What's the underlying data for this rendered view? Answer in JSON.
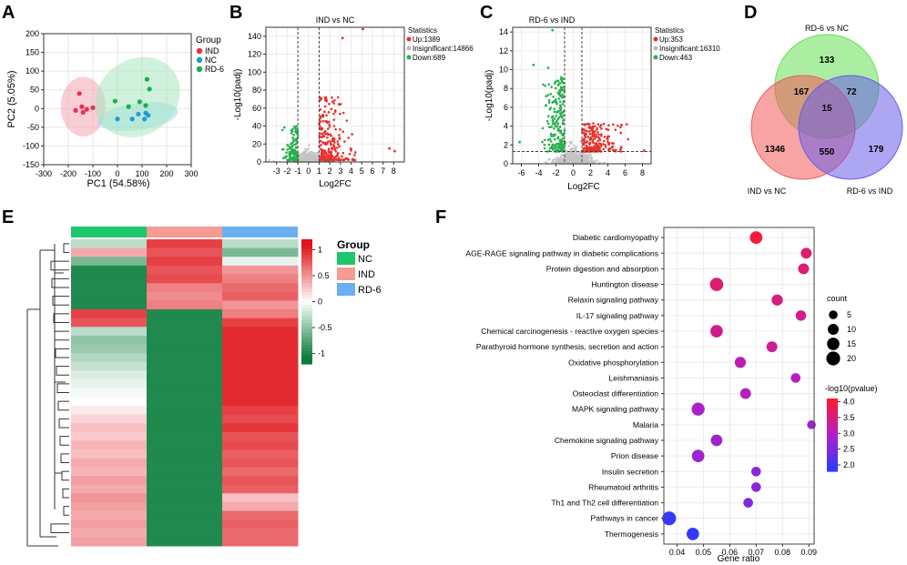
{
  "chart_data": [
    {
      "panel": "A",
      "type": "scatter",
      "xlabel": "PC1 (54.58%)",
      "ylabel": "PC2 (5.05%)",
      "xlim": [
        -300,
        300
      ],
      "ylim": [
        -150,
        200
      ],
      "xticks": [
        "-300",
        "-200",
        "-100",
        "0",
        "100",
        "200",
        "300"
      ],
      "yticks": [
        "200",
        "150",
        "100",
        "50",
        "0",
        "-50",
        "-100",
        "-150"
      ],
      "legend_title": "Group",
      "series": [
        {
          "name": "IND",
          "color": "#e8304d",
          "points": [
            [
              -155,
              40
            ],
            [
              -170,
              -5
            ],
            [
              -145,
              5
            ],
            [
              -125,
              -2
            ],
            [
              -100,
              2
            ],
            [
              -140,
              -10
            ]
          ]
        },
        {
          "name": "NC",
          "color": "#1e9bd6",
          "points": [
            [
              0,
              -28
            ],
            [
              60,
              -28
            ],
            [
              85,
              -15
            ],
            [
              110,
              -28
            ],
            [
              115,
              -12
            ],
            [
              125,
              -18
            ]
          ]
        },
        {
          "name": "RD-6",
          "color": "#1ab04a",
          "points": [
            [
              -10,
              20
            ],
            [
              45,
              5
            ],
            [
              120,
              78
            ],
            [
              130,
              52
            ],
            [
              90,
              18
            ],
            [
              115,
              8
            ]
          ]
        }
      ],
      "ellipses": [
        {
          "group": "IND",
          "color": "#f4a6b2"
        },
        {
          "group": "NC",
          "color": "#9fd9ee"
        },
        {
          "group": "RD-6",
          "color": "#a9e8c0"
        }
      ]
    },
    {
      "panel": "B",
      "type": "scatter",
      "title": "IND vs NC",
      "xlabel": "Log2FC",
      "ylabel": "-Log10(padj)",
      "xlim": [
        -4,
        9
      ],
      "ylim": [
        0,
        150
      ],
      "xticks": [
        "-3",
        "-2",
        "-1",
        "0",
        "1",
        "2",
        "3",
        "4",
        "5",
        "6",
        "7",
        "8"
      ],
      "yticks": [
        "0",
        "20",
        "40",
        "60",
        "80",
        "100",
        "120",
        "140"
      ],
      "cutoffs": {
        "x": [
          -1,
          1
        ]
      },
      "stats_title": "Statistics",
      "stats": [
        {
          "label": "Up:1389",
          "color": "#e8302c"
        },
        {
          "label": "Insignificant:14866",
          "color": "#bbbbbb"
        },
        {
          "label": "Down:689",
          "color": "#26b24b"
        }
      ]
    },
    {
      "panel": "C",
      "type": "scatter",
      "title": "RD-6 vs IND",
      "xlabel": "Log2FC",
      "ylabel": "-Log10(padj)",
      "xlim": [
        -7,
        9
      ],
      "ylim": [
        0,
        14.5
      ],
      "xticks": [
        "-6",
        "-4",
        "-2",
        "0",
        "2",
        "4",
        "6",
        "8"
      ],
      "yticks": [
        "0",
        "2",
        "4",
        "6",
        "8",
        "10",
        "12",
        "14"
      ],
      "cutoffs": {
        "x": [
          -1,
          1
        ],
        "y": 1.3
      },
      "stats_title": "Statistics",
      "stats": [
        {
          "label": "Up:353",
          "color": "#e8302c"
        },
        {
          "label": "Insignificant:16310",
          "color": "#bbbbbb"
        },
        {
          "label": "Down:463",
          "color": "#26b24b"
        }
      ]
    },
    {
      "panel": "D",
      "type": "venn",
      "sets": [
        {
          "name": "RD-6 vs NC",
          "color": "#66e055"
        },
        {
          "name": "IND vs  NC",
          "color": "#f25a5a"
        },
        {
          "name": "RD-6 vs IND",
          "color": "#6a5ce8"
        }
      ],
      "regions": {
        "rd6nc_only": "133",
        "ind_only": "1346",
        "rd6ind_only": "179",
        "rd6nc_ind": "167",
        "rd6nc_rd6ind": "72",
        "ind_rd6ind": "550",
        "all": "15"
      }
    },
    {
      "panel": "E",
      "type": "heatmap",
      "columns": [
        "NC",
        "IND",
        "RD-6"
      ],
      "column_colors": [
        "#1fc66b",
        "#f59b92",
        "#6aaff0"
      ],
      "legend_title": "Group",
      "colorbar_ticks": [
        "1",
        "0.5",
        "0",
        "-0.5",
        "-1"
      ],
      "colorbar_range": [
        -1.2,
        1.2
      ],
      "rows": [
        [
          -0.3,
          0.9,
          -0.3
        ],
        [
          0.4,
          0.8,
          -0.6
        ],
        [
          -0.6,
          0.9,
          -0.1
        ],
        [
          -1,
          0.8,
          0.5
        ],
        [
          -1,
          0.85,
          0.6
        ],
        [
          -1,
          0.6,
          0.7
        ],
        [
          -1,
          0.55,
          0.75
        ],
        [
          -1,
          0.6,
          0.5
        ],
        [
          0.9,
          -1,
          0.6
        ],
        [
          0.8,
          -1,
          0.9
        ],
        [
          -0.3,
          -1,
          1
        ],
        [
          -0.5,
          -1,
          1
        ],
        [
          -0.45,
          -1,
          1
        ],
        [
          -0.35,
          -1,
          1
        ],
        [
          -0.25,
          -1,
          1
        ],
        [
          -0.15,
          -1,
          1
        ],
        [
          -0.1,
          -1,
          1
        ],
        [
          -0.05,
          -1,
          1
        ],
        [
          0,
          -1,
          1
        ],
        [
          0.1,
          -1,
          0.9
        ],
        [
          0.2,
          -1,
          0.85
        ],
        [
          0.3,
          -1,
          0.95
        ],
        [
          0.25,
          -1,
          0.8
        ],
        [
          0.35,
          -1,
          0.85
        ],
        [
          0.3,
          -1,
          0.75
        ],
        [
          0.4,
          -1,
          0.8
        ],
        [
          0.35,
          -1,
          0.7
        ],
        [
          0.45,
          -1,
          0.8
        ],
        [
          0.4,
          -1,
          0.75
        ],
        [
          0.5,
          -1,
          0.3
        ],
        [
          0.45,
          -1,
          0.4
        ],
        [
          0.4,
          -1,
          0.7
        ],
        [
          0.45,
          -1,
          0.75
        ],
        [
          0.4,
          -1,
          0.7
        ],
        [
          0.45,
          -1,
          0.7
        ]
      ]
    },
    {
      "panel": "F",
      "type": "scatter",
      "subtype": "bubble",
      "xlabel": "Gene ratio",
      "xlim": [
        0.035,
        0.092
      ],
      "xticks": [
        "0.04",
        "0.05",
        "0.06",
        "0.07",
        "0.08",
        "0.09"
      ],
      "size_legend_title": "count",
      "size_legend": [
        5,
        10,
        15,
        20
      ],
      "color_legend_title": "-log10(pvalue)",
      "color_ticks": [
        "4.0",
        "3.5",
        "3.0",
        "2.5",
        "2.0"
      ],
      "color_range": [
        1.8,
        4.1
      ],
      "terms": [
        {
          "name": "Diabetic cardiomyopathy",
          "ratio": 0.07,
          "count": 15,
          "logp": 4.0
        },
        {
          "name": "AGE-RAGE signaling pathway in diabetic complications",
          "ratio": 0.089,
          "count": 10,
          "logp": 3.6
        },
        {
          "name": "Protein digestion and absorption",
          "ratio": 0.088,
          "count": 10,
          "logp": 3.6
        },
        {
          "name": "Huntington disease",
          "ratio": 0.055,
          "count": 18,
          "logp": 3.6
        },
        {
          "name": "Relaxin signaling pathway",
          "ratio": 0.078,
          "count": 11,
          "logp": 3.5
        },
        {
          "name": "IL-17 signaling pathway",
          "ratio": 0.087,
          "count": 9,
          "logp": 3.4
        },
        {
          "name": "Chemical carcinogenesis - reactive oxygen species",
          "ratio": 0.055,
          "count": 15,
          "logp": 3.4
        },
        {
          "name": "Parathyroid hormone synthesis, secretion and action",
          "ratio": 0.076,
          "count": 10,
          "logp": 3.3
        },
        {
          "name": "Oxidative phosphorylation",
          "ratio": 0.064,
          "count": 11,
          "logp": 3.1
        },
        {
          "name": "Leishmaniasis",
          "ratio": 0.085,
          "count": 7,
          "logp": 3.0
        },
        {
          "name": "Osteoclast differentiation",
          "ratio": 0.066,
          "count": 10,
          "logp": 3.0
        },
        {
          "name": "MAPK signaling pathway",
          "ratio": 0.048,
          "count": 17,
          "logp": 2.9
        },
        {
          "name": "Malaria",
          "ratio": 0.091,
          "count": 5,
          "logp": 2.8
        },
        {
          "name": "Chemokine signaling pathway",
          "ratio": 0.055,
          "count": 12,
          "logp": 2.8
        },
        {
          "name": "Prion disease",
          "ratio": 0.048,
          "count": 15,
          "logp": 2.8
        },
        {
          "name": "Insulin secretion",
          "ratio": 0.07,
          "count": 7,
          "logp": 2.6
        },
        {
          "name": "Rheumatoid arthritis",
          "ratio": 0.07,
          "count": 7,
          "logp": 2.6
        },
        {
          "name": "Th1 and Th2 cell differentiation",
          "ratio": 0.067,
          "count": 7,
          "logp": 2.5
        },
        {
          "name": "Pathways in cancer",
          "ratio": 0.037,
          "count": 20,
          "logp": 1.9
        },
        {
          "name": "Thermogenesis",
          "ratio": 0.046,
          "count": 15,
          "logp": 1.9
        }
      ]
    }
  ]
}
